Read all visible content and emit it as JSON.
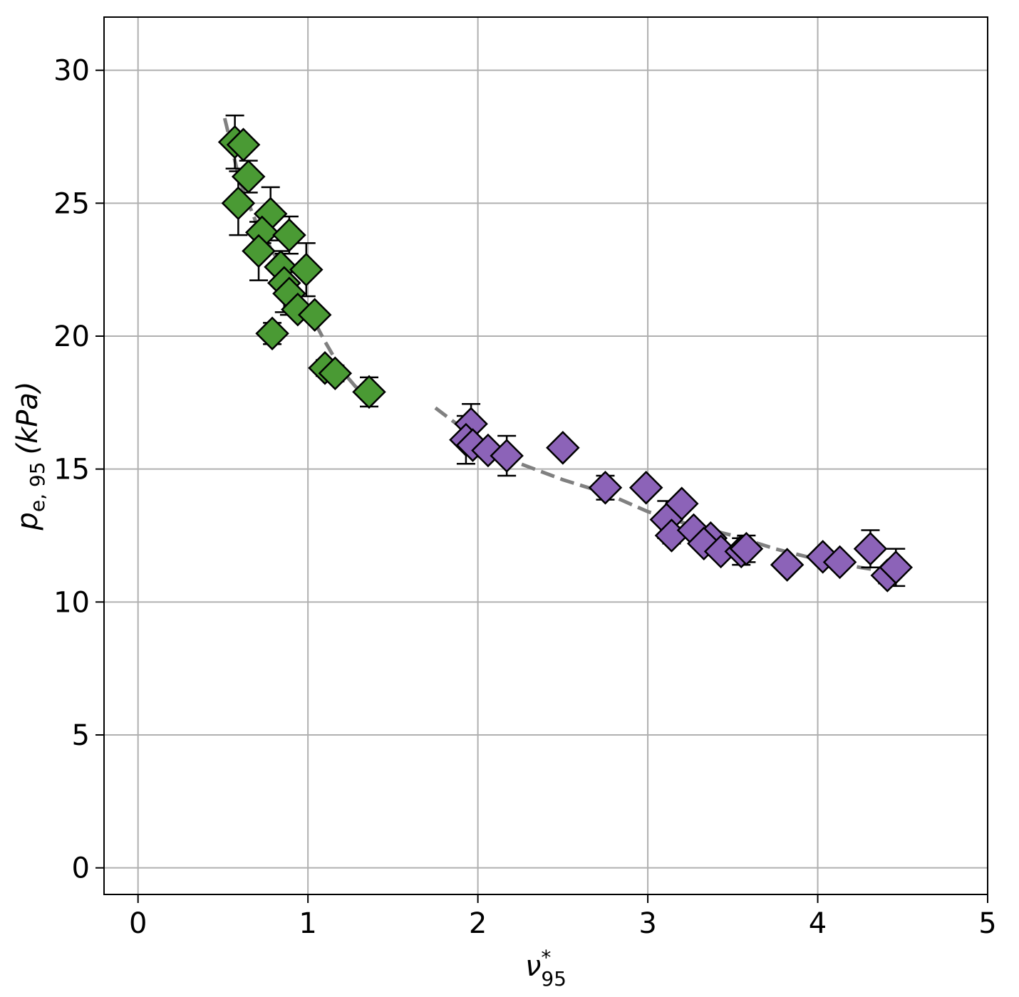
{
  "chart_data": {
    "type": "scatter",
    "xlabel": {
      "main": "ν",
      "sup": "*",
      "sub": "95"
    },
    "ylabel": {
      "main": "p",
      "sub": "e, 95",
      "unit": "(kPa)"
    },
    "xlim": [
      -0.2,
      5.0
    ],
    "ylim": [
      -1.0,
      32.0
    ],
    "xticks": [
      0,
      1,
      2,
      3,
      4,
      5
    ],
    "yticks": [
      0,
      5,
      10,
      15,
      20,
      25,
      30
    ],
    "grid": true,
    "legend": "none",
    "series": [
      {
        "color": "#4a9a34",
        "marker": "diamond",
        "points": [
          {
            "x": 0.57,
            "y": 27.3,
            "err": 1.0
          },
          {
            "x": 0.62,
            "y": 27.2,
            "err": 0.0
          },
          {
            "x": 0.65,
            "y": 26.0,
            "err": 0.6
          },
          {
            "x": 0.59,
            "y": 25.0,
            "err": 1.2
          },
          {
            "x": 0.78,
            "y": 24.6,
            "err": 1.0
          },
          {
            "x": 0.73,
            "y": 23.9,
            "err": 0.4
          },
          {
            "x": 0.89,
            "y": 23.8,
            "err": 0.7
          },
          {
            "x": 0.71,
            "y": 23.2,
            "err": 1.1
          },
          {
            "x": 0.84,
            "y": 22.6,
            "err": 0.6
          },
          {
            "x": 0.99,
            "y": 22.5,
            "err": 1.0
          },
          {
            "x": 0.86,
            "y": 22.0,
            "err": 1.1
          },
          {
            "x": 0.89,
            "y": 21.6,
            "err": 0.8
          },
          {
            "x": 0.94,
            "y": 21.0,
            "err": 0.0
          },
          {
            "x": 1.04,
            "y": 20.8,
            "err": 0.0
          },
          {
            "x": 0.79,
            "y": 20.1,
            "err": 0.4
          },
          {
            "x": 1.1,
            "y": 18.8,
            "err": 0.3
          },
          {
            "x": 1.16,
            "y": 18.6,
            "err": 0.3
          },
          {
            "x": 1.36,
            "y": 17.9,
            "err": 0.55
          }
        ]
      },
      {
        "color": "#8c63b8",
        "marker": "diamond",
        "points": [
          {
            "x": 1.96,
            "y": 16.7,
            "err": 0.75
          },
          {
            "x": 1.93,
            "y": 16.1,
            "err": 0.9
          },
          {
            "x": 1.97,
            "y": 15.9,
            "err": 0.0
          },
          {
            "x": 2.06,
            "y": 15.7,
            "err": 0.0
          },
          {
            "x": 2.17,
            "y": 15.5,
            "err": 0.75
          },
          {
            "x": 2.5,
            "y": 15.8,
            "err": 0.0
          },
          {
            "x": 2.75,
            "y": 14.3,
            "err": 0.45
          },
          {
            "x": 2.99,
            "y": 14.3,
            "err": 0.0
          },
          {
            "x": 3.2,
            "y": 13.7,
            "err": 0.0
          },
          {
            "x": 3.11,
            "y": 13.1,
            "err": 0.7
          },
          {
            "x": 3.14,
            "y": 12.5,
            "err": 0.3
          },
          {
            "x": 3.27,
            "y": 12.7,
            "err": 0.0
          },
          {
            "x": 3.37,
            "y": 12.4,
            "err": 0.0
          },
          {
            "x": 3.33,
            "y": 12.2,
            "err": 0.0
          },
          {
            "x": 3.43,
            "y": 11.9,
            "err": 0.0
          },
          {
            "x": 3.55,
            "y": 11.9,
            "err": 0.5
          },
          {
            "x": 3.58,
            "y": 12.0,
            "err": 0.5
          },
          {
            "x": 3.82,
            "y": 11.4,
            "err": 0.0
          },
          {
            "x": 4.03,
            "y": 11.7,
            "err": 0.0
          },
          {
            "x": 4.13,
            "y": 11.5,
            "err": 0.0
          },
          {
            "x": 4.31,
            "y": 12.0,
            "err": 0.7
          },
          {
            "x": 4.41,
            "y": 11.0,
            "err": 0.3
          },
          {
            "x": 4.46,
            "y": 11.3,
            "err": 0.7
          }
        ]
      }
    ],
    "fits": [
      {
        "color": "#808080",
        "style": "dashed",
        "points": [
          [
            0.51,
            28.2
          ],
          [
            0.6,
            25.8
          ],
          [
            0.7,
            24.2
          ],
          [
            0.8,
            23.1
          ],
          [
            0.9,
            22.0
          ],
          [
            1.0,
            21.0
          ],
          [
            1.1,
            19.8
          ],
          [
            1.2,
            18.7
          ],
          [
            1.28,
            18.1
          ],
          [
            1.38,
            17.6
          ]
        ]
      },
      {
        "color": "#808080",
        "style": "dashed",
        "points": [
          [
            1.75,
            17.3
          ],
          [
            2.0,
            16.1
          ],
          [
            2.25,
            15.2
          ],
          [
            2.5,
            14.6
          ],
          [
            2.75,
            14.1
          ],
          [
            3.0,
            13.4
          ],
          [
            3.25,
            12.9
          ],
          [
            3.5,
            12.5
          ],
          [
            3.75,
            12.0
          ],
          [
            4.0,
            11.6
          ],
          [
            4.25,
            11.3
          ],
          [
            4.45,
            11.1
          ]
        ]
      }
    ]
  }
}
